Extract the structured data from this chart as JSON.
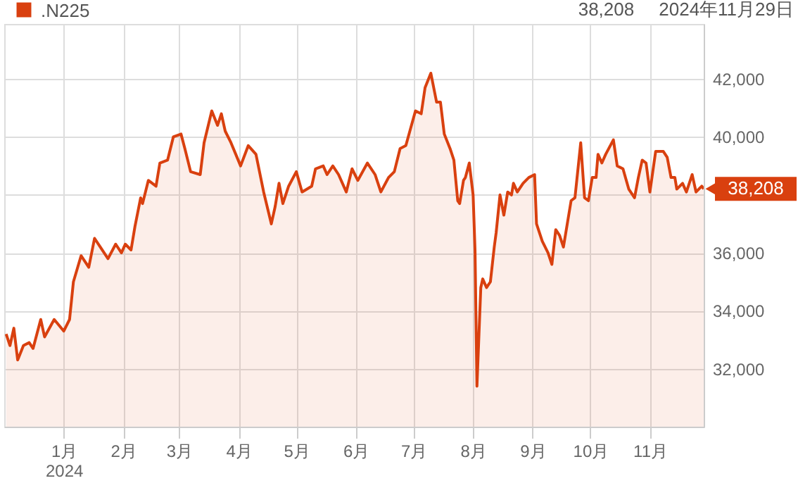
{
  "chart_data": {
    "type": "area",
    "legend": "top left",
    "grid": true,
    "x": [
      "2023-12-02",
      "2023-12-04",
      "2023-12-06",
      "2023-12-08",
      "2023-12-11",
      "2023-12-14",
      "2023-12-16",
      "2023-12-20",
      "2023-12-22",
      "2023-12-27",
      "2024-01-01",
      "2024-01-04",
      "2024-01-06",
      "2024-01-10",
      "2024-01-14",
      "2024-01-17",
      "2024-01-20",
      "2024-01-24",
      "2024-01-28",
      "2024-01-31",
      "2024-02-02",
      "2024-02-05",
      "2024-02-07",
      "2024-02-10",
      "2024-02-11",
      "2024-02-14",
      "2024-02-18",
      "2024-02-20",
      "2024-02-24",
      "2024-02-27",
      "2024-03-02",
      "2024-03-04",
      "2024-03-07",
      "2024-03-12",
      "2024-03-14",
      "2024-03-18",
      "2024-03-21",
      "2024-03-23",
      "2024-03-25",
      "2024-03-28",
      "2024-04-02",
      "2024-04-06",
      "2024-04-10",
      "2024-04-14",
      "2024-04-18",
      "2024-04-20",
      "2024-04-22",
      "2024-04-24",
      "2024-04-27",
      "2024-05-01",
      "2024-05-04",
      "2024-05-09",
      "2024-05-11",
      "2024-05-15",
      "2024-05-17",
      "2024-05-20",
      "2024-05-23",
      "2024-05-27",
      "2024-05-30",
      "2024-06-02",
      "2024-06-07",
      "2024-06-11",
      "2024-06-14",
      "2024-06-18",
      "2024-06-21",
      "2024-06-24",
      "2024-06-27",
      "2024-07-02",
      "2024-07-05",
      "2024-07-07",
      "2024-07-10",
      "2024-07-13",
      "2024-07-15",
      "2024-07-17",
      "2024-07-20",
      "2024-07-22",
      "2024-07-24",
      "2024-07-25",
      "2024-07-27",
      "2024-07-28",
      "2024-07-30",
      "2024-08-01",
      "2024-08-02",
      "2024-08-03",
      "2024-08-05",
      "2024-08-06",
      "2024-08-08",
      "2024-08-10",
      "2024-08-12",
      "2024-08-13",
      "2024-08-15",
      "2024-08-17",
      "2024-08-19",
      "2024-08-21",
      "2024-08-22",
      "2024-08-24",
      "2024-08-27",
      "2024-08-30",
      "2024-09-02",
      "2024-09-03",
      "2024-09-06",
      "2024-09-09",
      "2024-09-11",
      "2024-09-13",
      "2024-09-15",
      "2024-09-17",
      "2024-09-21",
      "2024-09-23",
      "2024-09-26",
      "2024-09-28",
      "2024-09-30",
      "2024-10-02",
      "2024-10-04",
      "2024-10-05",
      "2024-10-07",
      "2024-10-09",
      "2024-10-13",
      "2024-10-15",
      "2024-10-18",
      "2024-10-21",
      "2024-10-24",
      "2024-10-26",
      "2024-10-28",
      "2024-10-30",
      "2024-11-01",
      "2024-11-04",
      "2024-11-08",
      "2024-11-10",
      "2024-11-12",
      "2024-11-14",
      "2024-11-15",
      "2024-11-18",
      "2024-11-20",
      "2024-11-23",
      "2024-11-25",
      "2024-11-28",
      "2024-11-29"
    ],
    "series": [
      {
        "name": ".N225",
        "color": "#d9400f",
        "values": [
          33200,
          32800,
          33400,
          32300,
          32800,
          32900,
          32700,
          33700,
          33100,
          33700,
          33300,
          33700,
          35000,
          35900,
          35500,
          36500,
          36200,
          35800,
          36300,
          36000,
          36300,
          36100,
          36900,
          37900,
          37700,
          38500,
          38300,
          39100,
          39200,
          40000,
          40100,
          39600,
          38800,
          38700,
          39800,
          40900,
          40400,
          40800,
          40200,
          39800,
          39000,
          39700,
          39400,
          38100,
          37000,
          37600,
          38400,
          37700,
          38300,
          38800,
          38100,
          38300,
          38900,
          39000,
          38700,
          39000,
          38700,
          38100,
          38900,
          38500,
          39100,
          38700,
          38100,
          38600,
          38800,
          39600,
          39700,
          40900,
          40800,
          41700,
          42200,
          41200,
          41200,
          40100,
          39600,
          39200,
          37800,
          37700,
          38500,
          38600,
          39100,
          38000,
          36100,
          31400,
          34800,
          35100,
          34800,
          35000,
          36200,
          36700,
          38000,
          37300,
          38100,
          38000,
          38400,
          38100,
          38400,
          38600,
          38700,
          37000,
          36400,
          36000,
          35600,
          36800,
          36600,
          36200,
          37800,
          37900,
          39800,
          37900,
          37800,
          38600,
          38600,
          39400,
          39100,
          39400,
          39900,
          39000,
          38900,
          38200,
          37900,
          38600,
          39200,
          39100,
          38100,
          39500,
          39500,
          39300,
          38600,
          38600,
          38200,
          38400,
          38100,
          38700,
          38100,
          38300,
          38208
        ]
      }
    ],
    "xlim": [
      "2023-12-01",
      "2024-11-29"
    ],
    "xticks": [
      {
        "value": "2024-01-01",
        "label": "1月\n2024"
      },
      {
        "value": "2024-02-01",
        "label": "2月"
      },
      {
        "value": "2024-03-01",
        "label": "3月"
      },
      {
        "value": "2024-04-01",
        "label": "4月"
      },
      {
        "value": "2024-05-01",
        "label": "5月"
      },
      {
        "value": "2024-06-01",
        "label": "6月"
      },
      {
        "value": "2024-07-01",
        "label": "7月"
      },
      {
        "value": "2024-08-01",
        "label": "8月"
      },
      {
        "value": "2024-09-01",
        "label": "9月"
      },
      {
        "value": "2024-10-01",
        "label": "10月"
      },
      {
        "value": "2024-11-01",
        "label": "11月"
      }
    ],
    "ylim": [
      30000,
      43900
    ],
    "yticks": [
      {
        "value": 32000,
        "label": "32,000"
      },
      {
        "value": 34000,
        "label": "34,000"
      },
      {
        "value": 36000,
        "label": "36,000"
      },
      {
        "value": 38000,
        "label": null
      },
      {
        "value": 40000,
        "label": "40,000"
      },
      {
        "value": 42000,
        "label": "42,000"
      }
    ],
    "annotations": [
      "38,208",
      "2024年11月29日",
      {
        "text": "38,208",
        "x": "2024-11-29",
        "y": 38208
      }
    ]
  }
}
